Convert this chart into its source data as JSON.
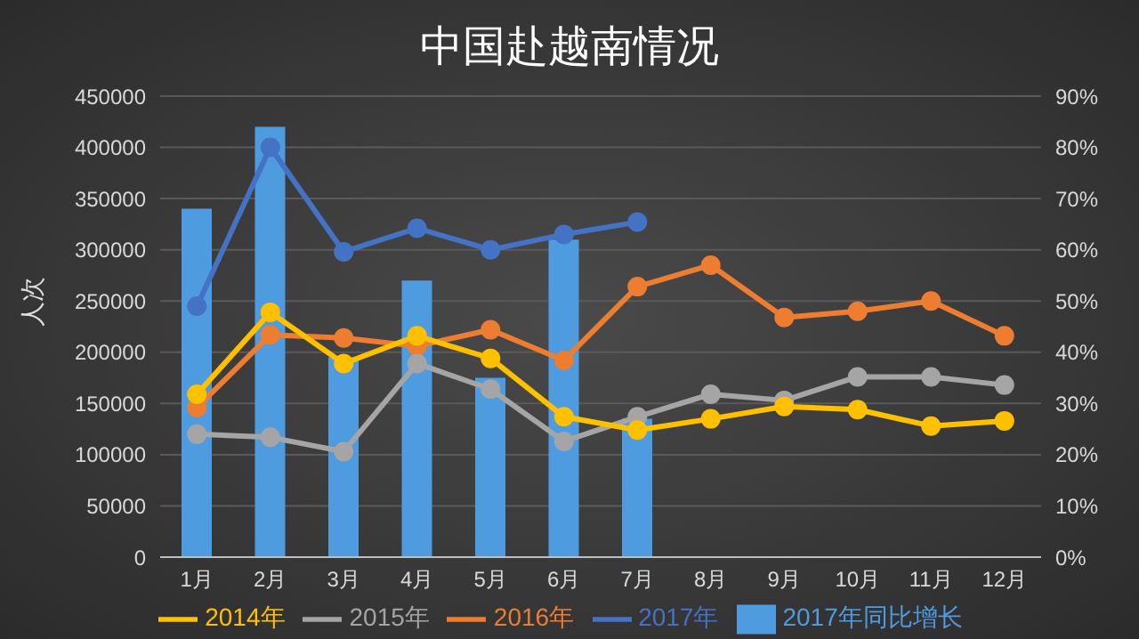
{
  "chart_data": {
    "type": "line",
    "title": "中国赴越南情况",
    "ylabel": "人次",
    "categories": [
      "1月",
      "2月",
      "3月",
      "4月",
      "5月",
      "6月",
      "7月",
      "8月",
      "9月",
      "10月",
      "11月",
      "12月"
    ],
    "series": [
      {
        "name": "2017年同比增长",
        "type": "bar",
        "axis": "y2",
        "color": "#4f9be0",
        "values": [
          68,
          84,
          39,
          54,
          35,
          62,
          27,
          null,
          null,
          null,
          null,
          null
        ]
      },
      {
        "name": "2017年",
        "color": "#4472c4",
        "values": [
          245000,
          400000,
          298000,
          321000,
          300000,
          315000,
          327000,
          null,
          null,
          null,
          null,
          null
        ]
      },
      {
        "name": "2016年",
        "color": "#ed7d31",
        "values": [
          146000,
          217000,
          214000,
          206000,
          222000,
          192000,
          264000,
          285000,
          234000,
          240000,
          250000,
          216000
        ]
      },
      {
        "name": "2015年",
        "color": "#a5a5a5",
        "values": [
          120000,
          117000,
          103000,
          189000,
          164000,
          113000,
          137000,
          159000,
          153000,
          176000,
          176000,
          168000
        ]
      },
      {
        "name": "2014年",
        "color": "#ffc000",
        "values": [
          159000,
          239000,
          189000,
          216000,
          194000,
          137000,
          124000,
          135000,
          147000,
          144000,
          128000,
          133000
        ]
      }
    ],
    "ylim": [
      0,
      450000
    ],
    "yticks": [
      0,
      50000,
      100000,
      150000,
      200000,
      250000,
      300000,
      350000,
      400000,
      450000
    ],
    "y2lim": [
      0,
      90
    ],
    "y2ticks": [
      {
        "value": 0,
        "label": "0%"
      },
      {
        "value": 10,
        "label": "10%"
      },
      {
        "value": 20,
        "label": "20%"
      },
      {
        "value": 30,
        "label": "30%"
      },
      {
        "value": 40,
        "label": "40%"
      },
      {
        "value": 50,
        "label": "50%"
      },
      {
        "value": 60,
        "label": "60%"
      },
      {
        "value": 70,
        "label": "70%"
      },
      {
        "value": 80,
        "label": "80%"
      },
      {
        "value": 90,
        "label": "90%"
      }
    ],
    "grid": "y",
    "legend": "bottom",
    "marker": "circle",
    "line_style": "solid"
  }
}
